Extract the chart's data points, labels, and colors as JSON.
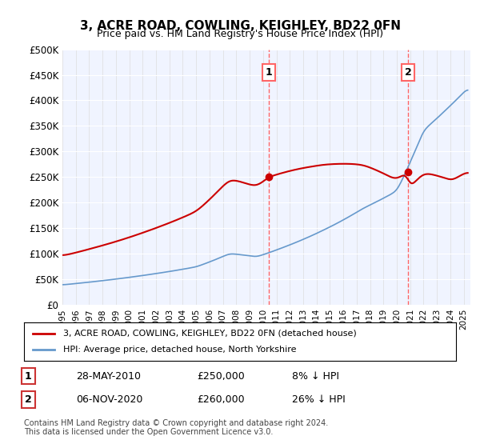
{
  "title": "3, ACRE ROAD, COWLING, KEIGHLEY, BD22 0FN",
  "subtitle": "Price paid vs. HM Land Registry's House Price Index (HPI)",
  "ylim": [
    0,
    500000
  ],
  "yticks": [
    0,
    50000,
    100000,
    150000,
    200000,
    250000,
    300000,
    350000,
    400000,
    450000,
    500000
  ],
  "ytick_labels": [
    "£0",
    "£50K",
    "£100K",
    "£150K",
    "£200K",
    "£250K",
    "£300K",
    "£350K",
    "£400K",
    "£450K",
    "£500K"
  ],
  "xlim_start": 1995.0,
  "xlim_end": 2025.5,
  "hpi_color": "#6699cc",
  "price_color": "#cc0000",
  "dashed_line_color": "#ff6666",
  "transaction1": {
    "date": 2010.41,
    "price": 250000,
    "label": "1"
  },
  "transaction2": {
    "date": 2020.84,
    "price": 260000,
    "label": "2"
  },
  "legend_line1": "3, ACRE ROAD, COWLING, KEIGHLEY, BD22 0FN (detached house)",
  "legend_line2": "HPI: Average price, detached house, North Yorkshire",
  "table_row1": [
    "1",
    "28-MAY-2010",
    "£250,000",
    "8% ↓ HPI"
  ],
  "table_row2": [
    "2",
    "06-NOV-2020",
    "£260,000",
    "26% ↓ HPI"
  ],
  "footnote": "Contains HM Land Registry data © Crown copyright and database right 2024.\nThis data is licensed under the Open Government Licence v3.0.",
  "background_color": "#ffffff",
  "plot_bg_color": "#f0f4ff"
}
